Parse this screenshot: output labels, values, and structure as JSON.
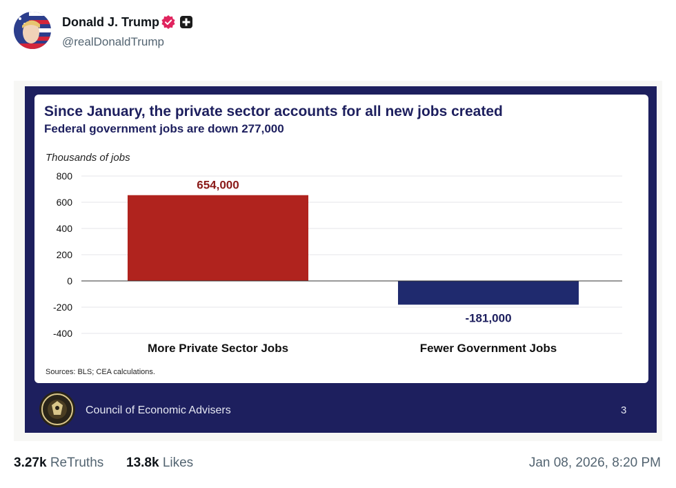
{
  "post": {
    "author_name": "Donald J. Trump",
    "handle": "@realDonaldTrump",
    "verified_color": "#e0245e",
    "timestamp": "Jan 08, 2026, 8:20 PM",
    "stats": {
      "retruths_count": "3.27k",
      "retruths_label": "ReTruths",
      "likes_count": "13.8k",
      "likes_label": "Likes"
    }
  },
  "slide": {
    "title": "Since January, the private sector accounts for all new jobs created",
    "subtitle": "Federal government jobs are down 277,000",
    "source": "Sources: BLS; CEA calculations.",
    "org_name": "Council of Economic Advisers",
    "page_number": "3",
    "colors": {
      "navy": "#1d1f5e",
      "red": "#b0231e",
      "blue": "#1f2a6e"
    }
  },
  "chart_data": {
    "type": "bar",
    "title": "Since January, the private sector accounts for all new jobs created",
    "subtitle": "Federal government jobs are down 277,000",
    "ylabel": "Thousands of jobs",
    "xlabel": "",
    "categories": [
      "More Private Sector Jobs",
      "Fewer Government Jobs"
    ],
    "values": [
      654,
      -181
    ],
    "data_labels": [
      "654,000",
      "-181,000"
    ],
    "bar_colors": [
      "#b0231e",
      "#1f2a6e"
    ],
    "yticks": [
      "800",
      "600",
      "400",
      "200",
      "0",
      "-200",
      "-400"
    ],
    "ylim": [
      -400,
      800
    ],
    "grid": true,
    "legend": "none"
  }
}
